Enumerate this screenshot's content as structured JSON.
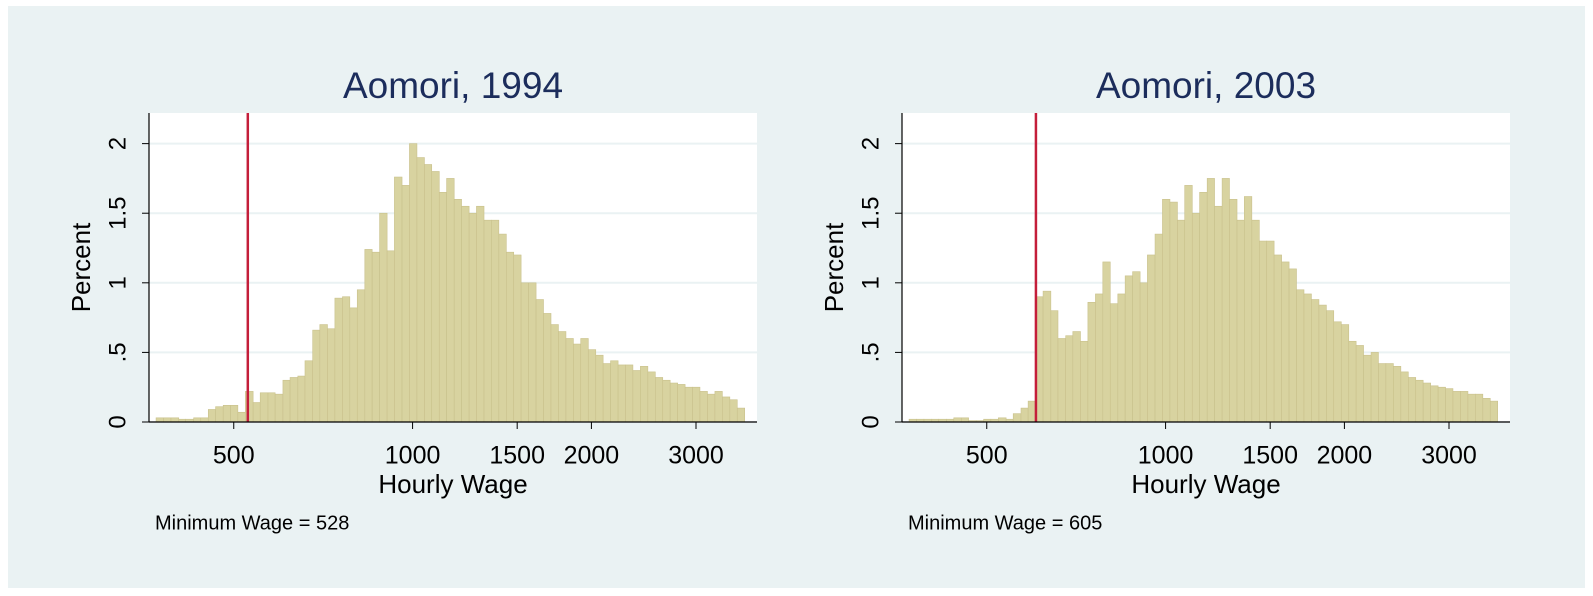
{
  "chart_data": [
    {
      "type": "histogram",
      "title": "Aomori, 1994",
      "xlabel": "Hourly Wage",
      "ylabel": "Percent",
      "note": "Minimum Wage = 528",
      "xline": {
        "value": 528,
        "color": "#c41e3a"
      },
      "xscale": "log",
      "grid": true,
      "color": "#d8d3a0",
      "xlim": [
        360,
        3800
      ],
      "ylim": [
        0,
        2.22
      ],
      "xticks": [
        500,
        1000,
        1500,
        2000,
        3000
      ],
      "yticks": [
        0,
        {
          "value": 0.5,
          "label": ".5"
        },
        1,
        1.5,
        2
      ],
      "bins": [
        370,
        381,
        392,
        404,
        415,
        428,
        440,
        453,
        466,
        480,
        494,
        508,
        523,
        539,
        554,
        571,
        587,
        605,
        622,
        641,
        659,
        679,
        698,
        719,
        740,
        762,
        784,
        807,
        831,
        855,
        880,
        906,
        932,
        960,
        988,
        1017,
        1047,
        1077,
        1109,
        1141,
        1175,
        1209,
        1245,
        1281,
        1319,
        1357,
        1397,
        1438,
        1480,
        1523,
        1568,
        1614,
        1661,
        1710,
        1760,
        1812,
        1865,
        1919,
        1976,
        2034,
        2093,
        2154,
        2218,
        2282,
        2349,
        2418,
        2489,
        2562,
        2637,
        2714,
        2794,
        2876,
        2960,
        3046,
        3136,
        3228,
        3322,
        3420,
        3520,
        3623
      ],
      "values": [
        0.03,
        0.03,
        0.03,
        0.02,
        0.02,
        0.03,
        0.03,
        0.09,
        0.11,
        0.12,
        0.12,
        0.07,
        0.22,
        0.14,
        0.21,
        0.21,
        0.2,
        0.3,
        0.32,
        0.33,
        0.44,
        0.66,
        0.7,
        0.67,
        0.89,
        0.9,
        0.82,
        0.95,
        1.24,
        1.22,
        1.5,
        1.23,
        1.76,
        1.7,
        2.0,
        1.9,
        1.85,
        1.8,
        1.65,
        1.75,
        1.6,
        1.55,
        1.5,
        1.55,
        1.45,
        1.45,
        1.35,
        1.22,
        1.2,
        1.0,
        1.0,
        0.88,
        0.78,
        0.7,
        0.65,
        0.6,
        0.56,
        0.6,
        0.52,
        0.48,
        0.42,
        0.44,
        0.41,
        0.41,
        0.37,
        0.4,
        0.36,
        0.32,
        0.3,
        0.28,
        0.27,
        0.25,
        0.25,
        0.22,
        0.2,
        0.22,
        0.18,
        0.16,
        0.1
      ]
    },
    {
      "type": "histogram",
      "title": "Aomori, 2003",
      "xlabel": "Hourly Wage",
      "ylabel": "Percent",
      "note": "Minimum Wage = 605",
      "xline": {
        "value": 605,
        "color": "#c41e3a"
      },
      "xscale": "log",
      "grid": true,
      "color": "#d8d3a0",
      "xlim": [
        360,
        3800
      ],
      "ylim": [
        0,
        2.22
      ],
      "xticks": [
        500,
        1000,
        1500,
        2000,
        3000
      ],
      "yticks": [
        0,
        {
          "value": 0.5,
          "label": ".5"
        },
        1,
        1.5,
        2
      ],
      "bins": [
        370,
        381,
        392,
        404,
        415,
        428,
        440,
        453,
        466,
        480,
        494,
        508,
        523,
        539,
        554,
        571,
        587,
        605,
        622,
        641,
        659,
        679,
        698,
        719,
        740,
        762,
        784,
        807,
        831,
        855,
        880,
        906,
        932,
        960,
        988,
        1017,
        1047,
        1077,
        1109,
        1141,
        1175,
        1209,
        1245,
        1281,
        1319,
        1357,
        1397,
        1438,
        1480,
        1523,
        1568,
        1614,
        1661,
        1710,
        1760,
        1812,
        1865,
        1919,
        1976,
        2034,
        2093,
        2154,
        2218,
        2282,
        2349,
        2418,
        2489,
        2562,
        2637,
        2714,
        2794,
        2876,
        2960,
        3046,
        3136,
        3228,
        3322,
        3420,
        3520,
        3623
      ],
      "values": [
        0.02,
        0.02,
        0.02,
        0.02,
        0.02,
        0.02,
        0.03,
        0.03,
        0.01,
        0.01,
        0.02,
        0.02,
        0.03,
        0.02,
        0.06,
        0.1,
        0.15,
        0.9,
        0.94,
        0.8,
        0.6,
        0.62,
        0.65,
        0.58,
        0.86,
        0.92,
        1.15,
        0.85,
        0.92,
        1.05,
        1.08,
        1.0,
        1.2,
        1.35,
        1.6,
        1.58,
        1.45,
        1.7,
        1.5,
        1.65,
        1.75,
        1.55,
        1.75,
        1.6,
        1.45,
        1.62,
        1.45,
        1.3,
        1.3,
        1.2,
        1.15,
        1.1,
        0.95,
        0.92,
        0.88,
        0.84,
        0.8,
        0.72,
        0.7,
        0.58,
        0.55,
        0.48,
        0.5,
        0.42,
        0.42,
        0.4,
        0.36,
        0.32,
        0.3,
        0.28,
        0.26,
        0.25,
        0.24,
        0.22,
        0.22,
        0.2,
        0.2,
        0.17,
        0.15
      ]
    }
  ]
}
